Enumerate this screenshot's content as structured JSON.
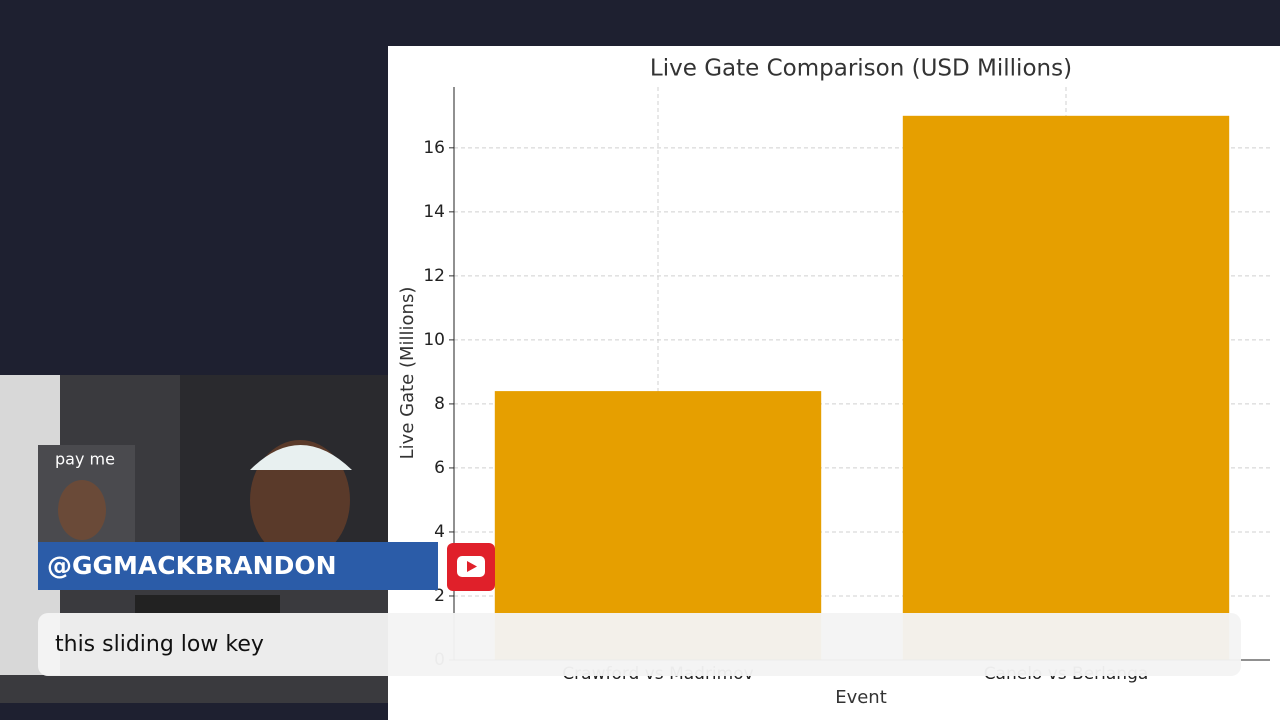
{
  "chart_data": {
    "type": "bar",
    "title": "Live Gate Comparison (USD Millions)",
    "x_label": "Event",
    "y_label": "Live Gate (Millions)",
    "categories": [
      "Crawford vs Madrimov",
      "Canelo vs Berlanga"
    ],
    "values": [
      8.4,
      17
    ],
    "color": "#e69f00",
    "ylim": [
      0,
      17.9
    ],
    "yticks": [
      0,
      2,
      4,
      6,
      8,
      10,
      12,
      14,
      16
    ],
    "grid": true
  },
  "overlay": {
    "thumbnail_label": "pay me",
    "handle": "@GGMACKBRANDON",
    "caption": "this sliding low key"
  }
}
